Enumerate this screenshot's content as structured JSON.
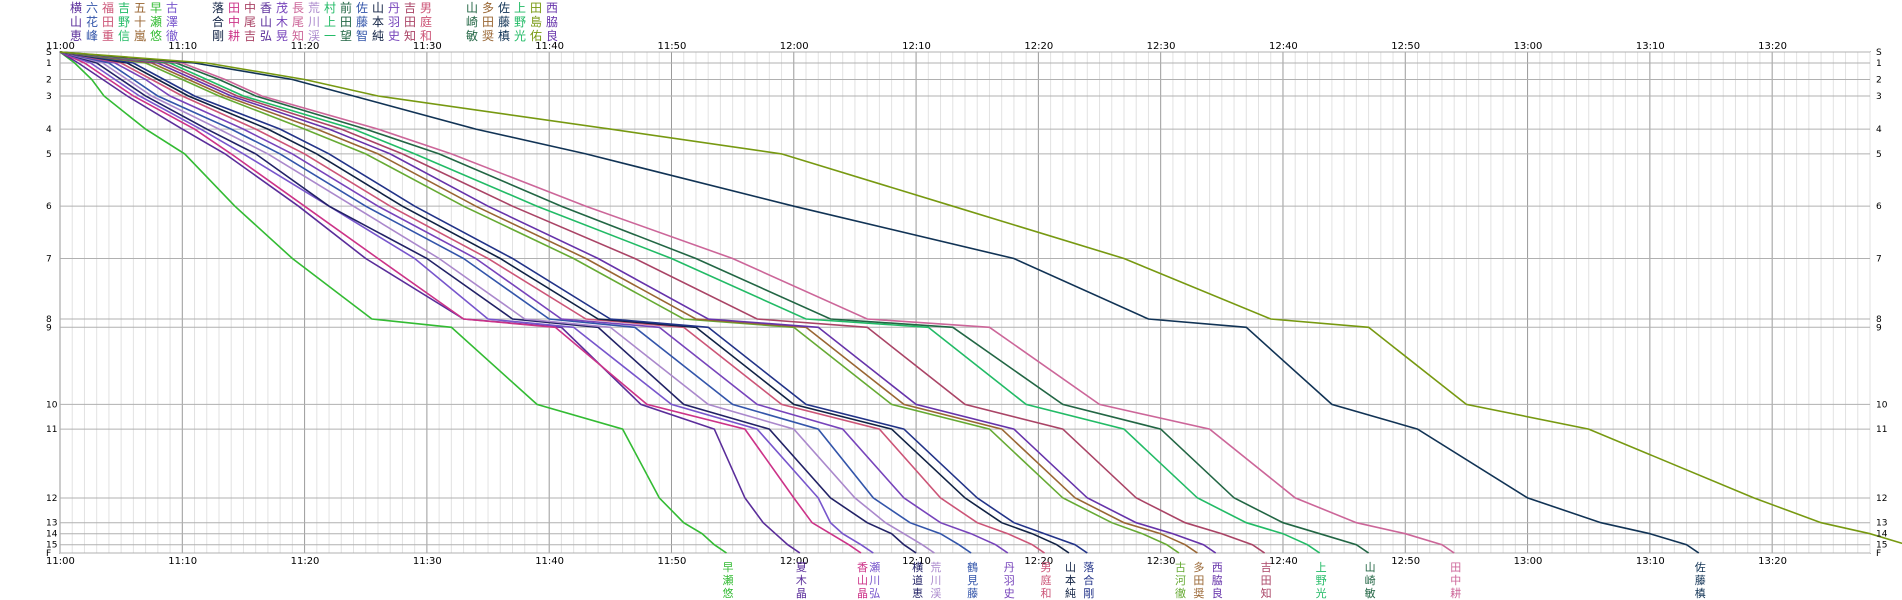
{
  "chart_data": {
    "type": "line",
    "title": "",
    "xlabel": "",
    "ylabel": "",
    "grid": true,
    "x_ticks": [
      "11:00",
      "11:10",
      "11:20",
      "11:30",
      "11:40",
      "11:50",
      "12:00",
      "12:10",
      "12:20",
      "12:30",
      "12:40",
      "12:50",
      "13:00",
      "13:10",
      "13:20"
    ],
    "x_range_minutes": [
      0,
      148
    ],
    "checkpoints": [
      {
        "label": "S",
        "distance": 0
      },
      {
        "label": "1",
        "distance": 0.4
      },
      {
        "label": "2",
        "distance": 1.0
      },
      {
        "label": "3",
        "distance": 1.6
      },
      {
        "label": "4",
        "distance": 2.8
      },
      {
        "label": "5",
        "distance": 3.7
      },
      {
        "label": "6",
        "distance": 5.6
      },
      {
        "label": "7",
        "distance": 7.5
      },
      {
        "label": "8",
        "distance": 9.7
      },
      {
        "label": "9",
        "distance": 10.0
      },
      {
        "label": "10",
        "distance": 12.8
      },
      {
        "label": "11",
        "distance": 13.7
      },
      {
        "label": "12",
        "distance": 16.2
      },
      {
        "label": "13",
        "distance": 17.1
      },
      {
        "label": "14",
        "distance": 17.5
      },
      {
        "label": "15",
        "distance": 17.9
      },
      {
        "label": "F",
        "distance": 18.2
      }
    ],
    "series": [
      {
        "name": "早瀬悠",
        "color": "#33bb33",
        "splits": [
          0,
          1.2,
          2.6,
          3.6,
          7.0,
          10.2,
          14.3,
          19.0,
          25.5,
          32.0,
          39.0,
          46.0,
          49.0,
          51.0,
          52.5,
          53.5
        ]
      },
      {
        "name": "夏木晶",
        "color": "#5a2d9a",
        "splits": [
          0,
          1.5,
          3.5,
          5.5,
          10.0,
          13.5,
          19.5,
          25.0,
          33.0,
          41.0,
          47.5,
          53.5,
          56.0,
          57.5,
          58.5,
          59.5
        ]
      },
      {
        "name": "香山晶",
        "color": "#cc3388",
        "splits": [
          0,
          2.0,
          4.0,
          6.0,
          11.0,
          14.0,
          20.0,
          26.0,
          33.0,
          40.5,
          48.0,
          56.0,
          60.0,
          61.5,
          63.0,
          64.5
        ]
      },
      {
        "name": "瀬川弘",
        "color": "#7755cc",
        "splits": [
          0,
          2.5,
          4.5,
          6.5,
          11.5,
          15.0,
          22.0,
          29.0,
          35.0,
          42.0,
          50.0,
          57.0,
          62.0,
          63.0,
          64.0,
          65.5
        ]
      },
      {
        "name": "横道恵",
        "color": "#222266",
        "splits": [
          0,
          3.0,
          5.0,
          7.0,
          12.0,
          16.0,
          22.0,
          30.0,
          37.0,
          44.0,
          51.0,
          58.0,
          63.0,
          66.0,
          68.0,
          69.0
        ]
      },
      {
        "name": "荒川渓",
        "color": "#aa88cc",
        "splits": [
          0,
          3.5,
          5.5,
          7.5,
          13.0,
          17.0,
          24.0,
          31.0,
          38.0,
          45.0,
          53.0,
          60.0,
          65.0,
          67.5,
          69.0,
          70.5
        ]
      },
      {
        "name": "鶴見藤",
        "color": "#3355aa",
        "splits": [
          0,
          4.0,
          6.0,
          8.0,
          14.0,
          18.0,
          25.0,
          33.0,
          40.0,
          47.0,
          55.0,
          62.0,
          66.5,
          69.5,
          72.0,
          73.5
        ]
      },
      {
        "name": "丹羽史",
        "color": "#7744bb",
        "splits": [
          0,
          4.5,
          7.0,
          9.0,
          15.0,
          19.0,
          26.0,
          34.0,
          41.0,
          49.0,
          57.0,
          64.0,
          69.0,
          72.0,
          74.5,
          76.5
        ]
      },
      {
        "name": "男庭和",
        "color": "#cc5577",
        "splits": [
          0,
          5.0,
          7.5,
          10.0,
          16.0,
          20.0,
          27.0,
          35.0,
          43.0,
          51.0,
          59.0,
          67.0,
          72.0,
          75.0,
          77.5,
          79.5
        ]
      },
      {
        "name": "山本純",
        "color": "#112244",
        "splits": [
          0,
          5.5,
          8.0,
          10.5,
          17.0,
          21.0,
          28.0,
          36.0,
          44.0,
          52.0,
          60.0,
          68.0,
          74.0,
          77.0,
          79.5,
          81.5
        ]
      },
      {
        "name": "落合剛",
        "color": "#223388",
        "splits": [
          0,
          6.0,
          8.5,
          11.0,
          18.0,
          22.0,
          29.0,
          37.0,
          45.0,
          53.0,
          61.0,
          69.0,
          75.0,
          78.0,
          80.5,
          83.0
        ]
      },
      {
        "name": "古河徹",
        "color": "#66aa33",
        "splits": [
          0,
          7.0,
          10.0,
          13.0,
          20.0,
          25.0,
          33.0,
          42.0,
          51.0,
          60.0,
          68.0,
          76.0,
          82.0,
          86.0,
          88.5,
          90.5
        ]
      },
      {
        "name": "多田奨",
        "color": "#996633",
        "splits": [
          0,
          7.5,
          10.5,
          13.5,
          21.0,
          26.0,
          34.0,
          43.0,
          52.0,
          61.0,
          69.0,
          77.0,
          83.0,
          87.0,
          90.0,
          92.0
        ]
      },
      {
        "name": "西脇良",
        "color": "#6633aa",
        "splits": [
          0,
          8.0,
          11.0,
          14.0,
          22.0,
          27.0,
          35.0,
          44.0,
          53.0,
          62.0,
          70.0,
          78.0,
          84.0,
          88.0,
          91.0,
          93.5
        ]
      },
      {
        "name": "吉田知",
        "color": "#aa4466",
        "splits": [
          0,
          8.5,
          11.5,
          14.5,
          23.0,
          28.0,
          37.0,
          47.0,
          57.0,
          66.0,
          74.0,
          82.0,
          88.0,
          92.0,
          95.0,
          97.5
        ]
      },
      {
        "name": "上野光",
        "color": "#22bb66",
        "splits": [
          0,
          9.0,
          12.0,
          15.0,
          24.0,
          29.0,
          39.0,
          50.0,
          61.0,
          71.0,
          79.0,
          87.0,
          93.0,
          97.0,
          100.0,
          102.0
        ]
      },
      {
        "name": "山崎敏",
        "color": "#226644",
        "splits": [
          0,
          9.5,
          13.0,
          16.0,
          25.0,
          31.0,
          41.0,
          52.0,
          63.0,
          73.0,
          82.0,
          90.0,
          96.0,
          100.0,
          103.0,
          106.0
        ]
      },
      {
        "name": "田中耕",
        "color": "#cc6699",
        "splits": [
          0,
          10.0,
          13.5,
          16.5,
          26.0,
          32.0,
          43.0,
          55.0,
          66.0,
          76.0,
          85.0,
          94.0,
          101.0,
          106.0,
          110.0,
          113.0
        ]
      },
      {
        "name": "佐藤槙",
        "color": "#113355",
        "splits": [
          0,
          11.0,
          19.0,
          24.0,
          34.0,
          43.0,
          60.0,
          78.0,
          89.0,
          97.0,
          104.0,
          111.0,
          120.0,
          126.0,
          130.0,
          133.0
        ]
      },
      {
        "name": "田島佑",
        "color": "#779911",
        "splits": [
          0,
          12.0,
          20.0,
          26.0,
          45.0,
          59.0,
          73.0,
          87.0,
          99.0,
          107.0,
          115.0,
          125.0,
          138.5,
          144.0,
          148.0,
          151.0
        ]
      }
    ]
  },
  "header_names": [
    [
      "横",
      "六",
      "福",
      "吉",
      "五",
      "早",
      "古",
      "落",
      "田",
      "中",
      "香",
      "茂",
      "長",
      "荒",
      "村",
      "前",
      "佐",
      "山",
      "丹",
      "吉",
      "男",
      "山",
      "多",
      "佐",
      "上",
      "田",
      "西"
    ],
    [
      "山",
      "花",
      "田",
      "野",
      "十",
      "瀬",
      "澤",
      "合",
      "中",
      "尾",
      "山",
      "木",
      "尾",
      "川",
      "上",
      "田",
      "藤",
      "本",
      "羽",
      "田",
      "庭",
      "崎",
      "田",
      "藤",
      "野",
      "島",
      "脇"
    ],
    [
      "恵",
      "峰",
      "重",
      "信",
      "嵐",
      "悠",
      "徹",
      "剛",
      "耕",
      "吉",
      "弘",
      "晃",
      "知",
      "渓",
      "一",
      "望",
      "智",
      "純",
      "史",
      "知",
      "和",
      "敏",
      "奨",
      "槙",
      "光",
      "佑",
      "良"
    ]
  ],
  "scale_labels": {
    "left": "S",
    "right": "S",
    "bottom_left": "F",
    "bottom_right": "F"
  }
}
